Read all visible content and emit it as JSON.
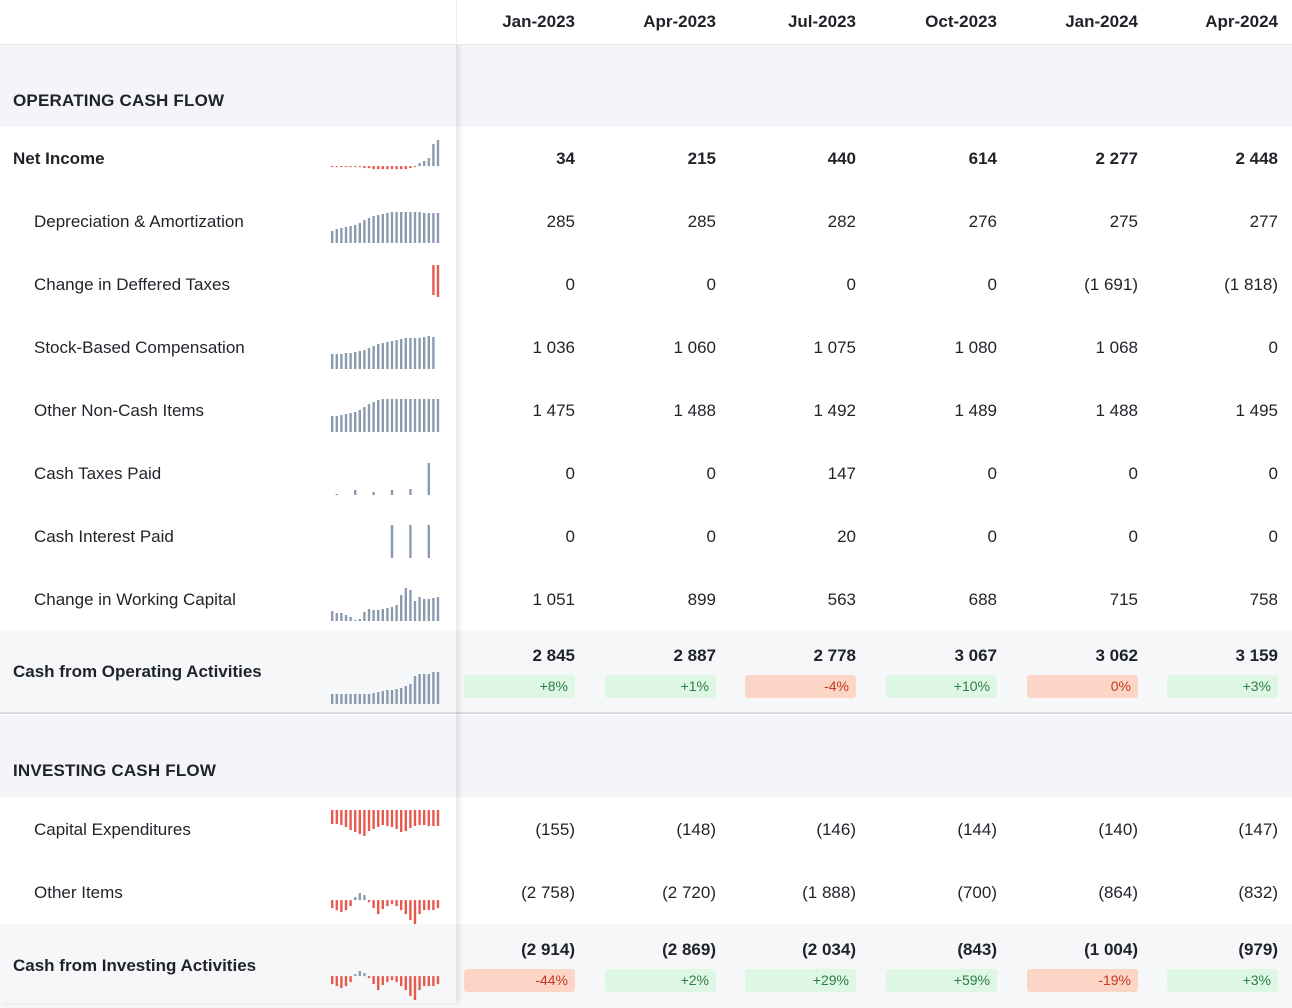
{
  "columns": [
    "Jan-2023",
    "Apr-2023",
    "Jul-2023",
    "Oct-2023",
    "Jan-2024",
    "Apr-2024"
  ],
  "sections": [
    {
      "title": "OPERATING CASH FLOW",
      "rows": [
        {
          "label": "Net Income",
          "bold": true,
          "indent": false,
          "values": [
            "34",
            "215",
            "440",
            "614",
            "2 277",
            "2 448"
          ],
          "spark": [
            -1,
            -1,
            -1,
            -1,
            -1,
            -1,
            -1,
            -2,
            -2,
            -3,
            -3,
            -3,
            -3,
            -3,
            -3,
            -3,
            -3,
            -2,
            -1,
            3,
            5,
            8,
            22,
            26
          ],
          "spark_color": [
            "#8a9bb0",
            "#e85a4f"
          ]
        },
        {
          "label": "Depreciation & Amortization",
          "bold": false,
          "indent": true,
          "values": [
            "285",
            "285",
            "282",
            "276",
            "275",
            "277"
          ],
          "spark": [
            12,
            14,
            15,
            16,
            17,
            18,
            20,
            23,
            25,
            27,
            28,
            29,
            30,
            31,
            31,
            31,
            31,
            31,
            31,
            31,
            30,
            30,
            30,
            30
          ],
          "spark_color": [
            "#8a9bb0",
            "#e85a4f"
          ]
        },
        {
          "label": "Change in Deffered Taxes",
          "bold": false,
          "indent": true,
          "values": [
            "0",
            "0",
            "0",
            "0",
            "(1 691)",
            "(1 818)"
          ],
          "spark": [
            0,
            0,
            0,
            0,
            0,
            0,
            0,
            0,
            0,
            0,
            0,
            0,
            0,
            0,
            0,
            0,
            0,
            0,
            0,
            0,
            0,
            0,
            -30,
            -32
          ],
          "spark_color": [
            "#8a9bb0",
            "#e85a4f"
          ]
        },
        {
          "label": "Stock-Based Compensation",
          "bold": false,
          "indent": true,
          "values": [
            "1 036",
            "1 060",
            "1 075",
            "1 080",
            "1 068",
            "0"
          ],
          "spark": [
            15,
            15,
            15,
            16,
            16,
            17,
            18,
            19,
            21,
            23,
            25,
            26,
            27,
            28,
            29,
            30,
            31,
            31,
            31,
            31,
            32,
            33,
            32,
            0
          ],
          "spark_color": [
            "#8a9bb0",
            "#e85a4f"
          ]
        },
        {
          "label": "Other Non-Cash Items",
          "bold": false,
          "indent": true,
          "values": [
            "1 475",
            "1 488",
            "1 492",
            "1 489",
            "1 488",
            "1 495"
          ],
          "spark": [
            16,
            16,
            17,
            18,
            19,
            20,
            22,
            25,
            28,
            30,
            32,
            33,
            33,
            33,
            33,
            33,
            33,
            33,
            33,
            33,
            33,
            33,
            33,
            33
          ],
          "spark_color": [
            "#8a9bb0",
            "#e85a4f"
          ]
        },
        {
          "label": "Cash Taxes Paid",
          "bold": false,
          "indent": true,
          "values": [
            "0",
            "0",
            "147",
            "0",
            "0",
            "0"
          ],
          "spark": [
            0,
            1,
            0,
            0,
            0,
            5,
            0,
            0,
            0,
            3,
            0,
            0,
            0,
            5,
            0,
            0,
            0,
            6,
            0,
            0,
            0,
            32,
            0,
            0
          ],
          "spark_color": [
            "#8a9bb0",
            "#e85a4f"
          ]
        },
        {
          "label": "Cash Interest Paid",
          "bold": false,
          "indent": true,
          "values": [
            "0",
            "0",
            "20",
            "0",
            "0",
            "0"
          ],
          "spark": [
            0,
            0,
            0,
            0,
            0,
            0,
            0,
            0,
            0,
            0,
            0,
            0,
            0,
            33,
            0,
            0,
            0,
            33,
            0,
            0,
            0,
            33,
            0,
            0
          ],
          "spark_color": [
            "#8a9bb0",
            "#e85a4f"
          ]
        },
        {
          "label": "Change in Working Capital",
          "bold": false,
          "indent": true,
          "values": [
            "1 051",
            "899",
            "563",
            "688",
            "715",
            "758"
          ],
          "spark": [
            10,
            8,
            8,
            6,
            4,
            1,
            2,
            9,
            12,
            11,
            11,
            12,
            13,
            14,
            16,
            26,
            33,
            31,
            20,
            24,
            22,
            22,
            23,
            24
          ],
          "spark_color": [
            "#8a9bb0",
            "#e85a4f"
          ]
        }
      ],
      "total": {
        "label": "Cash from Operating Activities",
        "values": [
          "2 845",
          "2 887",
          "2 778",
          "3 067",
          "3 062",
          "3 159"
        ],
        "changes": [
          "+8%",
          "+1%",
          "-4%",
          "+10%",
          "0%",
          "+3%"
        ],
        "change_type": [
          "pos",
          "pos",
          "neg",
          "pos",
          "neg",
          "pos"
        ],
        "spark": [
          10,
          10,
          10,
          10,
          10,
          10,
          10,
          10,
          10,
          11,
          12,
          13,
          14,
          14,
          15,
          16,
          18,
          20,
          28,
          30,
          30,
          30,
          32,
          32
        ],
        "spark_color": [
          "#8a9bb0",
          "#e85a4f"
        ]
      }
    },
    {
      "title": "INVESTING CASH FLOW",
      "rows": [
        {
          "label": "Capital Expenditures",
          "bold": false,
          "indent": true,
          "values": [
            "(155)",
            "(148)",
            "(146)",
            "(144)",
            "(140)",
            "(147)"
          ],
          "spark": [
            -14,
            -14,
            -15,
            -17,
            -20,
            -22,
            -24,
            -26,
            -21,
            -19,
            -17,
            -15,
            -16,
            -17,
            -19,
            -22,
            -21,
            -18,
            -16,
            -15,
            -15,
            -16,
            -16,
            -16
          ],
          "spark_color": [
            "#8a9bb0",
            "#e85a4f"
          ]
        },
        {
          "label": "Other Items",
          "bold": false,
          "indent": true,
          "values": [
            "(2 758)",
            "(2 720)",
            "(1 888)",
            "(700)",
            "(864)",
            "(832)"
          ],
          "spark": [
            -8,
            -10,
            -12,
            -10,
            -6,
            3,
            7,
            5,
            -2,
            -8,
            -14,
            -9,
            -6,
            -4,
            -6,
            -10,
            -14,
            -20,
            -24,
            -14,
            -10,
            -10,
            -10,
            -8
          ],
          "spark_color": [
            "#8a9bb0",
            "#e85a4f"
          ]
        }
      ],
      "total": {
        "label": "Cash from Investing Activities",
        "values": [
          "(2 914)",
          "(2 869)",
          "(2 034)",
          "(843)",
          "(1 004)",
          "(979)"
        ],
        "changes": [
          "-44%",
          "+2%",
          "+29%",
          "+59%",
          "-19%",
          "+3%"
        ],
        "change_type": [
          "neg",
          "pos",
          "pos",
          "pos",
          "neg",
          "pos"
        ],
        "spark": [
          -8,
          -10,
          -12,
          -10,
          -6,
          2,
          5,
          3,
          -2,
          -8,
          -14,
          -9,
          -6,
          -4,
          -6,
          -10,
          -14,
          -20,
          -24,
          -14,
          -10,
          -10,
          -10,
          -8
        ],
        "spark_color": [
          "#8a9bb0",
          "#e85a4f"
        ]
      }
    }
  ]
}
